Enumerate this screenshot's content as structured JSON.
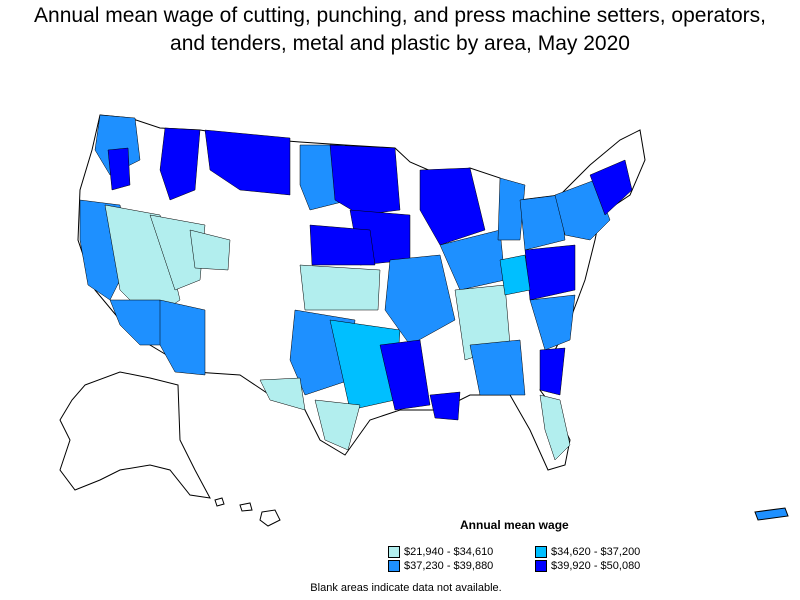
{
  "title": {
    "line1": "Annual mean wage of cutting, punching, and press machine setters, operators,",
    "line2": "and tenders, metal and plastic by area, May 2020"
  },
  "legend": {
    "title": "Annual mean wage",
    "items": [
      {
        "label": "$21,940 - $34,610",
        "color": "#b2eeee"
      },
      {
        "label": "$34,620 - $37,200",
        "color": "#00bfff"
      },
      {
        "label": "$37,230 - $39,880",
        "color": "#1e90ff"
      },
      {
        "label": "$39,920 - $50,080",
        "color": "#0000ff"
      }
    ]
  },
  "footnote": "Blank areas indicate data not available."
}
